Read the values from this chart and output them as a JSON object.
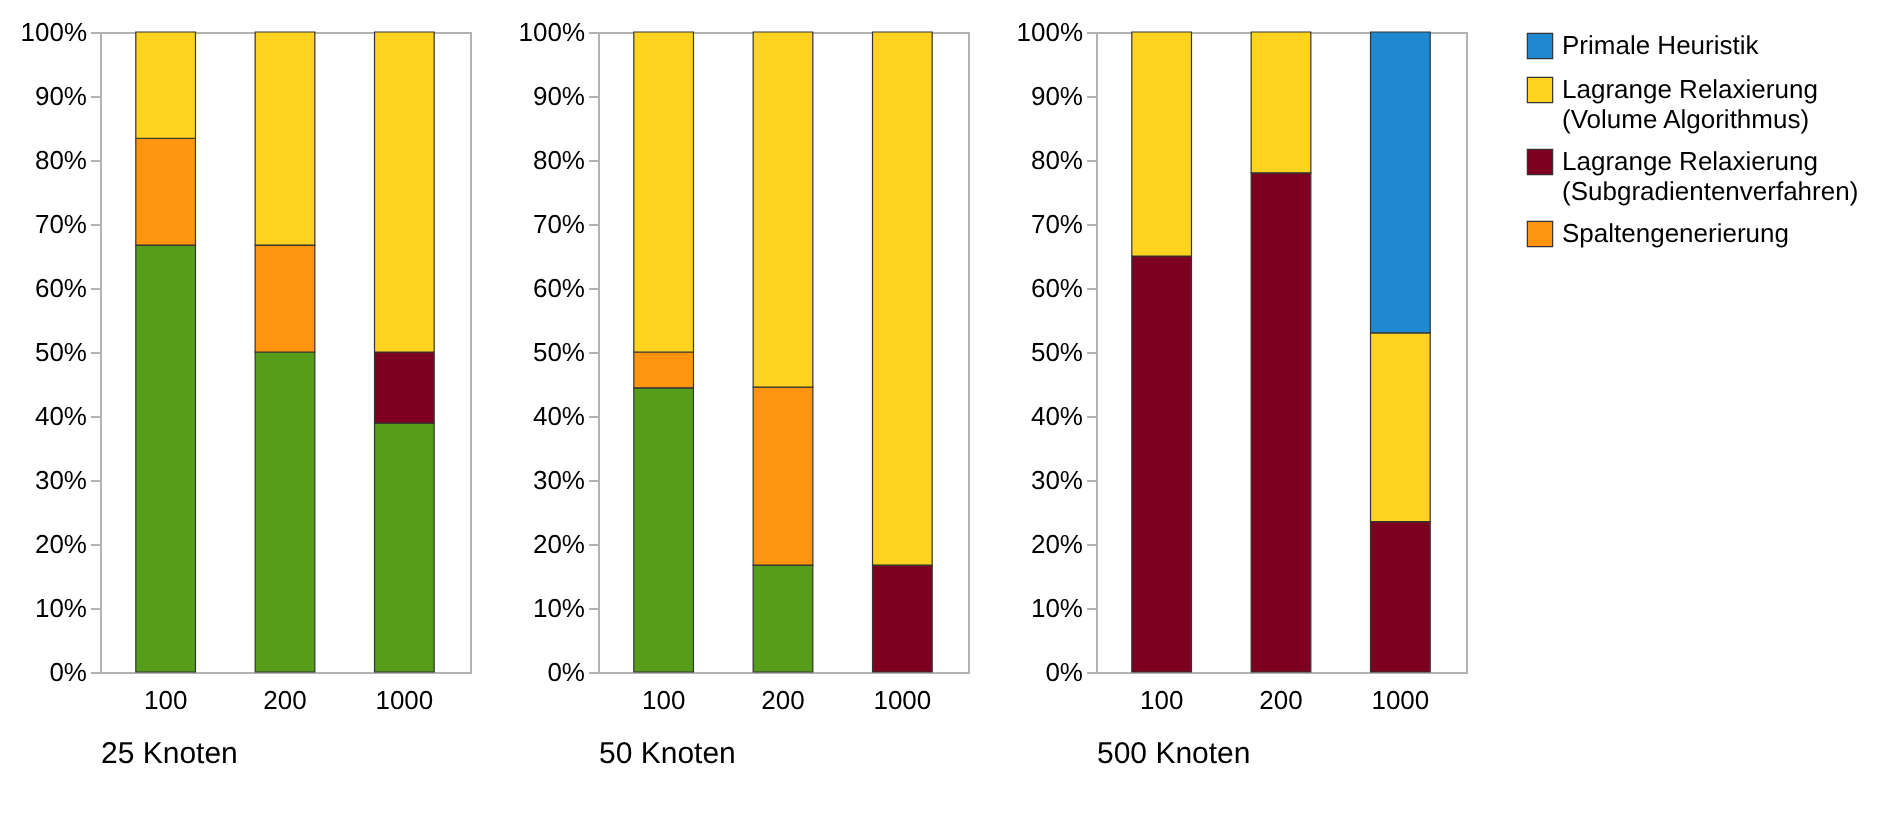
{
  "chart_data": [
    {
      "type": "bar",
      "stacked": true,
      "xlabel": "25 Knoten",
      "categories": [
        "100",
        "200",
        "1000"
      ],
      "ylim": [
        0,
        100
      ],
      "yticks": [
        {
          "value": 0,
          "label": "0%"
        },
        {
          "value": 10,
          "label": "10%"
        },
        {
          "value": 20,
          "label": "20%"
        },
        {
          "value": 30,
          "label": "30%"
        },
        {
          "value": 40,
          "label": "40%"
        },
        {
          "value": 50,
          "label": "50%"
        },
        {
          "value": 60,
          "label": "60%"
        },
        {
          "value": 70,
          "label": "70%"
        },
        {
          "value": 80,
          "label": "80%"
        },
        {
          "value": 90,
          "label": "90%"
        },
        {
          "value": 100,
          "label": "100%"
        }
      ],
      "series": [
        {
          "color": "#579d1c",
          "values": [
            66.7,
            50,
            38.9
          ]
        },
        {
          "color": "#ff950e",
          "values": [
            16.7,
            16.7,
            null
          ]
        },
        {
          "color": "#7e0021",
          "values": [
            null,
            null,
            11.1
          ]
        },
        {
          "color": "#ffd320",
          "values": [
            16.6,
            33.3,
            50
          ]
        },
        {
          "color": "#1e88d0",
          "values": [
            null,
            null,
            null
          ]
        }
      ]
    },
    {
      "type": "bar",
      "stacked": true,
      "xlabel": "50 Knoten",
      "categories": [
        "100",
        "200",
        "1000"
      ],
      "ylim": [
        0,
        100
      ],
      "yticks": [
        {
          "value": 0,
          "label": "0%"
        },
        {
          "value": 10,
          "label": "10%"
        },
        {
          "value": 20,
          "label": "20%"
        },
        {
          "value": 30,
          "label": "30%"
        },
        {
          "value": 40,
          "label": "40%"
        },
        {
          "value": 50,
          "label": "50%"
        },
        {
          "value": 60,
          "label": "60%"
        },
        {
          "value": 70,
          "label": "70%"
        },
        {
          "value": 80,
          "label": "80%"
        },
        {
          "value": 90,
          "label": "90%"
        },
        {
          "value": 100,
          "label": "100%"
        }
      ],
      "series": [
        {
          "color": "#579d1c",
          "values": [
            44.4,
            16.7,
            null
          ]
        },
        {
          "color": "#ff950e",
          "values": [
            5.6,
            27.8,
            null
          ]
        },
        {
          "color": "#7e0021",
          "values": [
            null,
            null,
            16.7
          ]
        },
        {
          "color": "#ffd320",
          "values": [
            50,
            55.5,
            83.3
          ]
        },
        {
          "color": "#1e88d0",
          "values": [
            null,
            null,
            null
          ]
        }
      ]
    },
    {
      "type": "bar",
      "stacked": true,
      "xlabel": "500 Knoten",
      "categories": [
        "100",
        "200",
        "1000"
      ],
      "ylim": [
        0,
        100
      ],
      "yticks": [
        {
          "value": 0,
          "label": "0%"
        },
        {
          "value": 10,
          "label": "10%"
        },
        {
          "value": 20,
          "label": "20%"
        },
        {
          "value": 30,
          "label": "30%"
        },
        {
          "value": 40,
          "label": "40%"
        },
        {
          "value": 50,
          "label": "50%"
        },
        {
          "value": 60,
          "label": "60%"
        },
        {
          "value": 70,
          "label": "70%"
        },
        {
          "value": 80,
          "label": "80%"
        },
        {
          "value": 90,
          "label": "90%"
        },
        {
          "value": 100,
          "label": "100%"
        }
      ],
      "legend": "right",
      "series": [
        {
          "color": "#579d1c",
          "values": [
            null,
            null,
            null
          ]
        },
        {
          "name": "Spaltengenerierung",
          "color": "#ff950e",
          "values": [
            null,
            null,
            null
          ]
        },
        {
          "name": "Lagrange Relaxierung (Subgradientenverfahren)",
          "color": "#7e0021",
          "values": [
            65,
            78,
            23.5
          ]
        },
        {
          "name": "Lagrange Relaxierung (Volume Algorithmus)",
          "color": "#ffd320",
          "values": [
            35,
            22,
            29.5
          ]
        },
        {
          "name": "Primale Heuristik",
          "color": "#1e88d0",
          "values": [
            null,
            null,
            47
          ]
        }
      ]
    }
  ]
}
